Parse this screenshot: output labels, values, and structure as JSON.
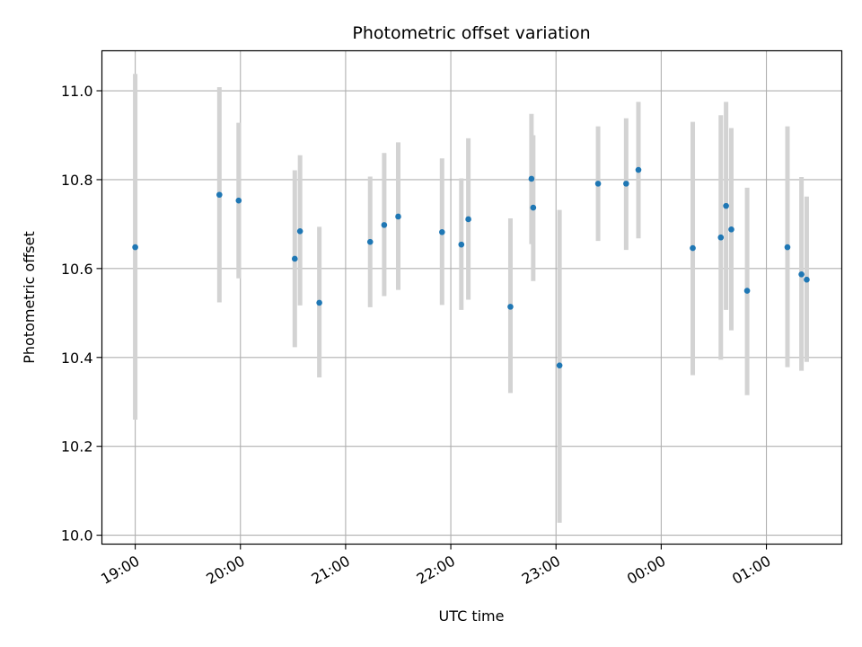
{
  "chart_data": {
    "type": "scatter",
    "title": "Photometric offset variation",
    "xlabel": "UTC time",
    "ylabel": "Photometric offset",
    "xlim": [
      "18:41",
      "25:43"
    ],
    "ylim": [
      9.98,
      11.09
    ],
    "x_ticks": [
      "19:00",
      "20:00",
      "21:00",
      "22:00",
      "23:00",
      "00:00",
      "01:00"
    ],
    "y_ticks": [
      "10.0",
      "10.2",
      "10.4",
      "10.6",
      "10.8",
      "11.0"
    ],
    "grid": true,
    "colors": {
      "point": "#1f77b4",
      "errorbar": "#d3d3d3",
      "grid": "#b0b0b0"
    },
    "points": [
      {
        "x": "19:00",
        "y": 10.648,
        "ylow": 10.26,
        "yhigh": 11.038
      },
      {
        "x": "19:48",
        "y": 10.766,
        "ylow": 10.524,
        "yhigh": 11.008
      },
      {
        "x": "19:59",
        "y": 10.753,
        "ylow": 10.578,
        "yhigh": 10.928
      },
      {
        "x": "20:31",
        "y": 10.622,
        "ylow": 10.423,
        "yhigh": 10.821
      },
      {
        "x": "20:34",
        "y": 10.684,
        "ylow": 10.517,
        "yhigh": 10.855
      },
      {
        "x": "20:45",
        "y": 10.523,
        "ylow": 10.355,
        "yhigh": 10.694
      },
      {
        "x": "21:14",
        "y": 10.66,
        "ylow": 10.513,
        "yhigh": 10.807
      },
      {
        "x": "21:22",
        "y": 10.698,
        "ylow": 10.538,
        "yhigh": 10.86
      },
      {
        "x": "21:30",
        "y": 10.717,
        "ylow": 10.552,
        "yhigh": 10.884
      },
      {
        "x": "21:55",
        "y": 10.682,
        "ylow": 10.518,
        "yhigh": 10.848
      },
      {
        "x": "22:06",
        "y": 10.654,
        "ylow": 10.507,
        "yhigh": 10.803
      },
      {
        "x": "22:10",
        "y": 10.711,
        "ylow": 10.53,
        "yhigh": 10.893
      },
      {
        "x": "22:34",
        "y": 10.514,
        "ylow": 10.32,
        "yhigh": 10.713
      },
      {
        "x": "22:46",
        "y": 10.802,
        "ylow": 10.655,
        "yhigh": 10.948
      },
      {
        "x": "22:47",
        "y": 10.737,
        "ylow": 10.572,
        "yhigh": 10.9
      },
      {
        "x": "23:02",
        "y": 10.382,
        "ylow": 10.028,
        "yhigh": 10.732
      },
      {
        "x": "23:24",
        "y": 10.791,
        "ylow": 10.662,
        "yhigh": 10.92
      },
      {
        "x": "23:40",
        "y": 10.791,
        "ylow": 10.642,
        "yhigh": 10.938
      },
      {
        "x": "23:47",
        "y": 10.822,
        "ylow": 10.668,
        "yhigh": 10.975
      },
      {
        "x": "24:18",
        "y": 10.646,
        "ylow": 10.36,
        "yhigh": 10.93
      },
      {
        "x": "24:34",
        "y": 10.67,
        "ylow": 10.395,
        "yhigh": 10.945
      },
      {
        "x": "24:37",
        "y": 10.741,
        "ylow": 10.507,
        "yhigh": 10.975
      },
      {
        "x": "24:40",
        "y": 10.688,
        "ylow": 10.461,
        "yhigh": 10.916
      },
      {
        "x": "24:49",
        "y": 10.55,
        "ylow": 10.315,
        "yhigh": 10.782
      },
      {
        "x": "25:12",
        "y": 10.648,
        "ylow": 10.378,
        "yhigh": 10.92
      },
      {
        "x": "25:20",
        "y": 10.587,
        "ylow": 10.37,
        "yhigh": 10.806
      },
      {
        "x": "25:23",
        "y": 10.575,
        "ylow": 10.39,
        "yhigh": 10.762
      }
    ]
  }
}
